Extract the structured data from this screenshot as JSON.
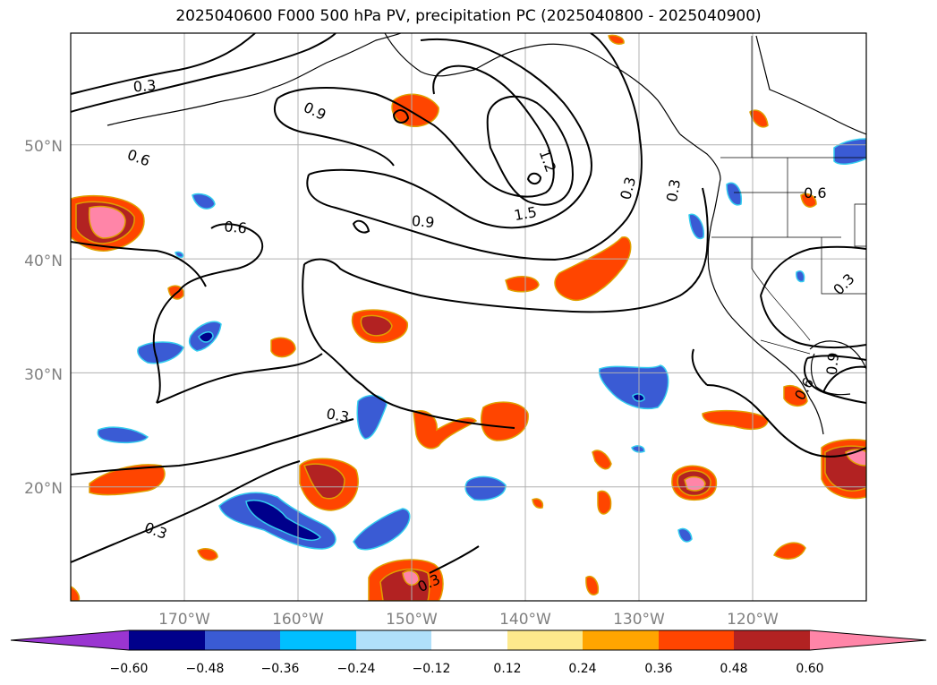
{
  "title": "2025040600 F000 500 hPa PV, precipitation PC (2025040800 - 2025040900)",
  "colors": {
    "c_lt_neg06": "#9a35d1",
    "c_neg06_neg048": "#00008b",
    "c_neg048_neg036": "#3a5bd4",
    "c_neg036_neg024": "#00bfff",
    "c_neg024_neg012": "#b0e0fa",
    "c_neg012_012": "#ffffff",
    "c_012_024": "#fde98c",
    "c_024_036": "#ffa500",
    "c_036_048": "#ff4500",
    "c_048_060": "#b22222",
    "c_gt_060": "#ff85a8",
    "grid": "#b0b0b0",
    "coast": "#000000",
    "contour": "#000000"
  },
  "map": {
    "lat_labels": [
      "50°N",
      "40°N",
      "30°N",
      "20°N"
    ],
    "lon_labels": [
      "170°W",
      "160°W",
      "150°W",
      "140°W",
      "130°W",
      "120°W"
    ],
    "contour_labels": [
      {
        "text": "0.3",
        "lon": -173.5,
        "lat": 55.2,
        "rot": -5
      },
      {
        "text": "0.9",
        "lon": -158.5,
        "lat": 53.0,
        "rot": 25
      },
      {
        "text": "0.6",
        "lon": -174.0,
        "lat": 48.9,
        "rot": 20
      },
      {
        "text": "1.2",
        "lon": -138.0,
        "lat": 48.6,
        "rot": 70
      },
      {
        "text": "0.3",
        "lon": -131.0,
        "lat": 46.2,
        "rot": -75
      },
      {
        "text": "0.9",
        "lon": -149.0,
        "lat": 43.3,
        "rot": 5
      },
      {
        "text": "1.5",
        "lon": -140.0,
        "lat": 44.0,
        "rot": -10
      },
      {
        "text": "0.6",
        "lon": -165.5,
        "lat": 42.8,
        "rot": 5
      },
      {
        "text": "0.3",
        "lon": -127.0,
        "lat": 46.0,
        "rot": -80
      },
      {
        "text": "0.6",
        "lon": -114.5,
        "lat": 45.8,
        "rot": 0
      },
      {
        "text": "0.3",
        "lon": -112.0,
        "lat": 37.8,
        "rot": -45
      },
      {
        "text": "0.3",
        "lon": -156.5,
        "lat": 26.3,
        "rot": 10
      },
      {
        "text": "0.9",
        "lon": -113.0,
        "lat": 30.8,
        "rot": -85
      },
      {
        "text": "0.6",
        "lon": -115.5,
        "lat": 28.6,
        "rot": -60
      },
      {
        "text": "0.3",
        "lon": -172.5,
        "lat": 16.2,
        "rot": 20
      },
      {
        "text": "0.3",
        "lon": -148.5,
        "lat": 11.6,
        "rot": -25
      }
    ]
  },
  "colorbar": {
    "ticks": [
      "−0.60",
      "−0.48",
      "−0.36",
      "−0.24",
      "−0.12",
      "0.12",
      "0.24",
      "0.36",
      "0.48",
      "0.60"
    ]
  }
}
